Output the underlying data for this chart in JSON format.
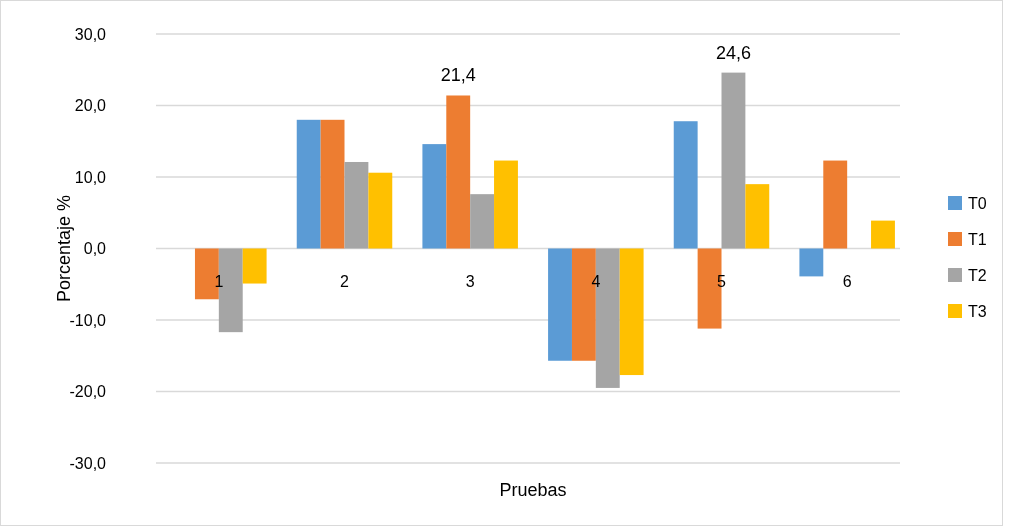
{
  "chart_data": {
    "type": "bar",
    "xlabel": "Pruebas",
    "ylabel": "Porcentaje %",
    "categories": [
      "1",
      "2",
      "3",
      "4",
      "5",
      "6"
    ],
    "series": [
      {
        "name": "T0",
        "color": "#5b9bd5",
        "values": [
          null,
          18.0,
          14.6,
          -15.7,
          17.8,
          -3.9
        ]
      },
      {
        "name": "T1",
        "color": "#ed7d31",
        "values": [
          -7.1,
          18.0,
          21.4,
          -15.7,
          -11.2,
          12.3
        ],
        "value_labels": [
          null,
          null,
          "21,4",
          null,
          null,
          null
        ]
      },
      {
        "name": "T2",
        "color": "#a5a5a5",
        "values": [
          -11.7,
          12.1,
          7.6,
          -19.5,
          24.6,
          null
        ],
        "value_labels": [
          null,
          null,
          null,
          null,
          "24,6",
          null
        ]
      },
      {
        "name": "T3",
        "color": "#ffc000",
        "values": [
          -4.9,
          10.6,
          12.3,
          -17.7,
          9.0,
          3.9
        ]
      }
    ],
    "ylim": [
      -30,
      30
    ],
    "yticks": [
      {
        "value": -30,
        "label": "-30,0"
      },
      {
        "value": -20,
        "label": "-20,0"
      },
      {
        "value": -10,
        "label": "-10,0"
      },
      {
        "value": 0,
        "label": "0,0"
      },
      {
        "value": 10,
        "label": "10,0"
      },
      {
        "value": 20,
        "label": "20,0"
      },
      {
        "value": 30,
        "label": "30,0"
      }
    ],
    "grid": "y",
    "legend": "right"
  }
}
